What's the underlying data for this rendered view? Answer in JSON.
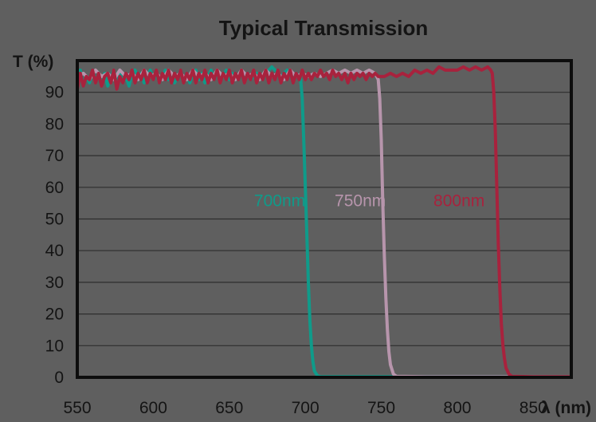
{
  "chart_data": {
    "type": "line",
    "title": "Typical Transmission",
    "xlabel": "λ (nm)",
    "ylabel": "T (%)",
    "xlim": [
      550,
      875
    ],
    "ylim": [
      0,
      100
    ],
    "x_ticks": [
      550,
      600,
      650,
      700,
      750,
      800,
      850
    ],
    "y_ticks": [
      0,
      10,
      20,
      30,
      40,
      50,
      60,
      70,
      80,
      90
    ],
    "grid": true,
    "legend": "inline labels",
    "colors": {
      "background": "#5f5f5f",
      "plot_area": "#5f5f5f",
      "frame": "#0d0d0d",
      "grid": "#2e2e2e"
    },
    "series": [
      {
        "name": "700nm",
        "color": "#0f9b8a",
        "label_at": [
          700,
          54
        ],
        "points": [
          [
            550,
            93
          ],
          [
            552,
            97
          ],
          [
            554,
            92
          ],
          [
            556,
            95
          ],
          [
            558,
            93
          ],
          [
            560,
            97
          ],
          [
            562,
            94
          ],
          [
            564,
            96
          ],
          [
            566,
            93
          ],
          [
            568,
            96
          ],
          [
            570,
            92
          ],
          [
            572,
            95
          ],
          [
            574,
            97
          ],
          [
            576,
            94
          ],
          [
            578,
            96
          ],
          [
            580,
            93
          ],
          [
            582,
            95
          ],
          [
            584,
            92
          ],
          [
            586,
            96
          ],
          [
            588,
            97
          ],
          [
            590,
            94
          ],
          [
            592,
            96
          ],
          [
            594,
            93
          ],
          [
            596,
            95
          ],
          [
            598,
            97
          ],
          [
            600,
            94
          ],
          [
            602,
            96
          ],
          [
            604,
            93
          ],
          [
            606,
            95
          ],
          [
            608,
            97
          ],
          [
            610,
            94
          ],
          [
            612,
            96
          ],
          [
            614,
            93
          ],
          [
            616,
            95
          ],
          [
            618,
            97
          ],
          [
            620,
            94
          ],
          [
            622,
            96
          ],
          [
            624,
            93
          ],
          [
            626,
            96
          ],
          [
            628,
            97
          ],
          [
            630,
            94
          ],
          [
            632,
            96
          ],
          [
            634,
            93
          ],
          [
            636,
            95
          ],
          [
            638,
            97
          ],
          [
            640,
            94
          ],
          [
            642,
            96
          ],
          [
            644,
            94
          ],
          [
            646,
            95
          ],
          [
            648,
            97
          ],
          [
            650,
            94
          ],
          [
            652,
            96
          ],
          [
            654,
            94
          ],
          [
            656,
            95
          ],
          [
            658,
            97
          ],
          [
            660,
            94
          ],
          [
            662,
            96
          ],
          [
            664,
            94
          ],
          [
            666,
            95
          ],
          [
            668,
            96
          ],
          [
            670,
            94
          ],
          [
            672,
            95
          ],
          [
            674,
            96
          ],
          [
            676,
            97
          ],
          [
            678,
            98
          ],
          [
            680,
            97
          ],
          [
            682,
            96
          ],
          [
            684,
            95
          ],
          [
            686,
            96
          ],
          [
            688,
            97
          ],
          [
            690,
            96
          ],
          [
            692,
            95
          ],
          [
            694,
            96
          ],
          [
            696,
            95
          ],
          [
            697,
            94
          ],
          [
            698,
            88
          ],
          [
            699,
            75
          ],
          [
            700,
            60
          ],
          [
            701,
            45
          ],
          [
            702,
            30
          ],
          [
            703,
            18
          ],
          [
            704,
            10
          ],
          [
            705,
            5
          ],
          [
            706,
            2
          ],
          [
            708,
            0.5
          ],
          [
            710,
            0.2
          ],
          [
            730,
            0.2
          ],
          [
            760,
            0.2
          ],
          [
            800,
            0.2
          ],
          [
            840,
            0.2
          ],
          [
            875,
            0.2
          ]
        ]
      },
      {
        "name": "750nm",
        "color": "#b795ac",
        "label_at": [
          753,
          54
        ],
        "points": [
          [
            550,
            95
          ],
          [
            554,
            96
          ],
          [
            558,
            94
          ],
          [
            562,
            97
          ],
          [
            566,
            95
          ],
          [
            570,
            96
          ],
          [
            574,
            94
          ],
          [
            578,
            97
          ],
          [
            582,
            95
          ],
          [
            586,
            96
          ],
          [
            590,
            94
          ],
          [
            594,
            97
          ],
          [
            598,
            95
          ],
          [
            602,
            96
          ],
          [
            606,
            94
          ],
          [
            610,
            97
          ],
          [
            614,
            95
          ],
          [
            618,
            96
          ],
          [
            622,
            94
          ],
          [
            626,
            97
          ],
          [
            630,
            95
          ],
          [
            634,
            96
          ],
          [
            638,
            94
          ],
          [
            642,
            97
          ],
          [
            646,
            95
          ],
          [
            650,
            96
          ],
          [
            654,
            94
          ],
          [
            658,
            97
          ],
          [
            662,
            95
          ],
          [
            666,
            96
          ],
          [
            670,
            94
          ],
          [
            674,
            97
          ],
          [
            678,
            95
          ],
          [
            682,
            96
          ],
          [
            686,
            94
          ],
          [
            690,
            97
          ],
          [
            694,
            95
          ],
          [
            698,
            96
          ],
          [
            702,
            95
          ],
          [
            706,
            96
          ],
          [
            710,
            95
          ],
          [
            714,
            96
          ],
          [
            718,
            97
          ],
          [
            722,
            96
          ],
          [
            726,
            97
          ],
          [
            730,
            96
          ],
          [
            734,
            97
          ],
          [
            738,
            96
          ],
          [
            742,
            97
          ],
          [
            746,
            96
          ],
          [
            748,
            94
          ],
          [
            749,
            88
          ],
          [
            750,
            75
          ],
          [
            751,
            55
          ],
          [
            752,
            38
          ],
          [
            753,
            25
          ],
          [
            754,
            15
          ],
          [
            755,
            8
          ],
          [
            756,
            4
          ],
          [
            758,
            1
          ],
          [
            760,
            0.3
          ],
          [
            780,
            0.2
          ],
          [
            820,
            0.2
          ],
          [
            875,
            0.2
          ]
        ]
      },
      {
        "name": "800nm",
        "color": "#a8223d",
        "label_at": [
          818,
          54
        ],
        "points": [
          [
            550,
            91
          ],
          [
            552,
            96
          ],
          [
            554,
            92
          ],
          [
            556,
            95
          ],
          [
            558,
            94
          ],
          [
            560,
            97
          ],
          [
            562,
            93
          ],
          [
            564,
            96
          ],
          [
            566,
            92
          ],
          [
            568,
            95
          ],
          [
            570,
            96
          ],
          [
            572,
            93
          ],
          [
            574,
            97
          ],
          [
            576,
            91
          ],
          [
            578,
            95
          ],
          [
            580,
            93
          ],
          [
            582,
            96
          ],
          [
            584,
            94
          ],
          [
            586,
            97
          ],
          [
            588,
            93
          ],
          [
            590,
            96
          ],
          [
            592,
            94
          ],
          [
            594,
            97
          ],
          [
            596,
            93
          ],
          [
            598,
            96
          ],
          [
            600,
            94
          ],
          [
            602,
            97
          ],
          [
            604,
            93
          ],
          [
            606,
            96
          ],
          [
            608,
            94
          ],
          [
            610,
            97
          ],
          [
            612,
            93
          ],
          [
            614,
            96
          ],
          [
            616,
            94
          ],
          [
            618,
            97
          ],
          [
            620,
            93
          ],
          [
            622,
            96
          ],
          [
            624,
            94
          ],
          [
            626,
            97
          ],
          [
            628,
            93
          ],
          [
            630,
            96
          ],
          [
            632,
            94
          ],
          [
            634,
            97
          ],
          [
            636,
            93
          ],
          [
            638,
            96
          ],
          [
            640,
            94
          ],
          [
            642,
            97
          ],
          [
            644,
            93
          ],
          [
            646,
            96
          ],
          [
            648,
            94
          ],
          [
            650,
            97
          ],
          [
            652,
            93
          ],
          [
            654,
            96
          ],
          [
            656,
            94
          ],
          [
            658,
            97
          ],
          [
            660,
            93
          ],
          [
            662,
            96
          ],
          [
            664,
            94
          ],
          [
            666,
            97
          ],
          [
            668,
            93
          ],
          [
            670,
            96
          ],
          [
            672,
            94
          ],
          [
            674,
            97
          ],
          [
            676,
            93
          ],
          [
            678,
            96
          ],
          [
            680,
            94
          ],
          [
            682,
            97
          ],
          [
            684,
            93
          ],
          [
            686,
            96
          ],
          [
            688,
            94
          ],
          [
            690,
            97
          ],
          [
            692,
            93
          ],
          [
            694,
            96
          ],
          [
            696,
            94
          ],
          [
            698,
            97
          ],
          [
            700,
            94
          ],
          [
            702,
            96
          ],
          [
            704,
            94
          ],
          [
            706,
            96
          ],
          [
            708,
            95
          ],
          [
            710,
            97
          ],
          [
            712,
            95
          ],
          [
            714,
            96
          ],
          [
            716,
            94
          ],
          [
            718,
            97
          ],
          [
            720,
            95
          ],
          [
            722,
            96
          ],
          [
            724,
            94
          ],
          [
            726,
            96
          ],
          [
            728,
            93
          ],
          [
            730,
            96
          ],
          [
            732,
            94
          ],
          [
            734,
            96
          ],
          [
            736,
            95
          ],
          [
            738,
            96
          ],
          [
            740,
            94
          ],
          [
            742,
            96
          ],
          [
            744,
            95
          ],
          [
            746,
            96
          ],
          [
            748,
            95
          ],
          [
            752,
            95
          ],
          [
            756,
            96
          ],
          [
            760,
            95
          ],
          [
            764,
            96
          ],
          [
            768,
            95
          ],
          [
            772,
            97
          ],
          [
            776,
            96
          ],
          [
            780,
            97
          ],
          [
            784,
            96
          ],
          [
            788,
            98
          ],
          [
            792,
            97
          ],
          [
            796,
            97
          ],
          [
            800,
            97
          ],
          [
            804,
            98
          ],
          [
            808,
            97
          ],
          [
            812,
            98
          ],
          [
            816,
            97
          ],
          [
            820,
            98
          ],
          [
            822,
            97
          ],
          [
            823,
            96
          ],
          [
            824,
            90
          ],
          [
            825,
            78
          ],
          [
            826,
            60
          ],
          [
            827,
            42
          ],
          [
            828,
            28
          ],
          [
            829,
            17
          ],
          [
            830,
            10
          ],
          [
            831,
            6
          ],
          [
            832,
            3
          ],
          [
            834,
            1
          ],
          [
            836,
            0.3
          ],
          [
            850,
            0.2
          ],
          [
            875,
            0.2
          ]
        ]
      }
    ]
  }
}
